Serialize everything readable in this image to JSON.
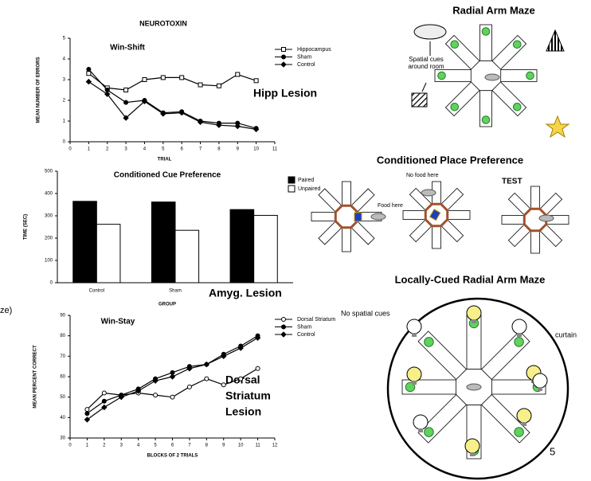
{
  "chart_data": [
    {
      "type": "line",
      "title": "NEUROTOXIN",
      "subtitle": "Win-Shift",
      "y_label": "MEAN NUMBER OF ERRORS",
      "x_label": "TRIAL",
      "annotation": [
        "Hipp Lesion"
      ],
      "x": [
        1,
        2,
        3,
        4,
        5,
        6,
        7,
        8,
        9,
        10
      ],
      "series": [
        {
          "name": "Hippocampus",
          "color": "#000000",
          "marker": "square-open",
          "values": [
            3.3,
            2.6,
            2.5,
            3.0,
            3.1,
            3.1,
            2.75,
            2.7,
            3.25,
            2.95
          ]
        },
        {
          "name": "Sham",
          "color": "#000000",
          "marker": "circle",
          "values": [
            3.5,
            2.5,
            1.9,
            2.0,
            1.4,
            1.45,
            1.0,
            0.9,
            0.9,
            0.65
          ]
        },
        {
          "name": "Control",
          "color": "#000000",
          "marker": "diamond",
          "values": [
            2.9,
            2.3,
            1.15,
            1.95,
            1.35,
            1.4,
            0.95,
            0.8,
            0.75,
            0.6
          ]
        }
      ],
      "xlim": [
        0,
        11
      ],
      "xticks": [
        0,
        1,
        2,
        3,
        4,
        5,
        6,
        7,
        8,
        9,
        10,
        11
      ],
      "ylim": [
        0,
        5
      ],
      "yticks": [
        0,
        1,
        2,
        3,
        4,
        5
      ]
    },
    {
      "type": "bar",
      "title": "Conditioned Cue Preference",
      "y_label": "TIME (SEC)",
      "x_label": "GROUP",
      "annotation": [
        "Amyg. Lesion"
      ],
      "categories": [
        "Control",
        "Sham",
        null
      ],
      "series": [
        {
          "name": "Paired",
          "color": "#000000",
          "values": [
            365,
            362,
            328
          ]
        },
        {
          "name": "Unpaired",
          "color": "#ffffff",
          "values": [
            262,
            235,
            302
          ]
        }
      ],
      "ylim": [
        0,
        500
      ],
      "yticks": [
        0,
        100,
        200,
        300,
        400,
        500
      ]
    },
    {
      "type": "line",
      "title": "Win-Stay",
      "y_label": "MEAN PERCENT CORRECT",
      "x_label": "BLOCKS OF 2 TRIALS",
      "annotation": [
        "Dorsal",
        "Striatum",
        "Lesion"
      ],
      "x": [
        1,
        2,
        3,
        4,
        5,
        6,
        7,
        8,
        9,
        10,
        11
      ],
      "series": [
        {
          "name": "Dorsal Striatum",
          "color": "#000000",
          "marker": "circle-open",
          "values": [
            44,
            52,
            51,
            52,
            51,
            50,
            55,
            59,
            56,
            59,
            64
          ]
        },
        {
          "name": "Sham",
          "color": "#000000",
          "marker": "circle",
          "values": [
            42,
            48,
            51,
            54,
            59,
            62,
            65,
            66,
            71,
            75,
            80
          ]
        },
        {
          "name": "Control",
          "color": "#000000",
          "marker": "diamond",
          "values": [
            39,
            45,
            50,
            53,
            58,
            60,
            64,
            66,
            70,
            74,
            79
          ]
        }
      ],
      "xlim": [
        0,
        12
      ],
      "xticks": [
        0,
        1,
        2,
        3,
        4,
        5,
        6,
        7,
        8,
        9,
        10,
        11,
        12
      ],
      "ylim": [
        30,
        90
      ],
      "yticks": [
        30,
        40,
        50,
        60,
        70,
        80,
        90
      ]
    }
  ],
  "diagrams": {
    "radial": {
      "title": "Radial Arm Maze",
      "cues": "Spatial cues around room"
    },
    "place": {
      "title": "Conditioned Place Preference",
      "no_food": "No food here",
      "food": "Food here",
      "test": "TEST"
    },
    "local": {
      "title": "Locally-Cued Radial Arm Maze",
      "no_cues": "No spatial cues",
      "curtain": "curtain"
    }
  },
  "cut_text": "ze)",
  "page_number": 5
}
